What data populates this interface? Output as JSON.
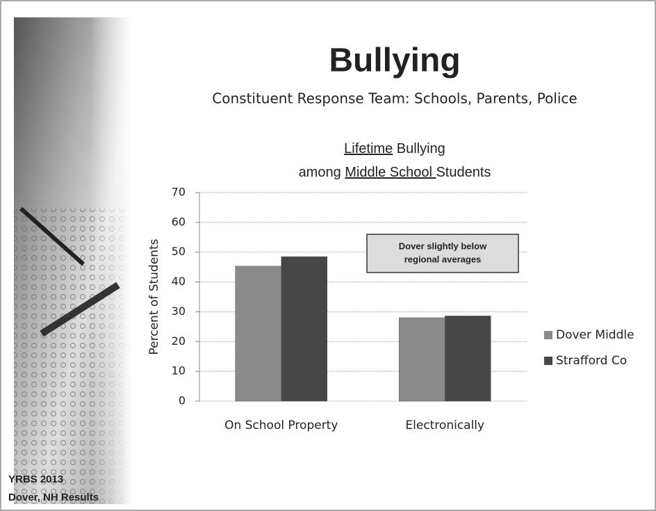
{
  "slide": {
    "heading": "Bullying",
    "subtitle": "Constituent Response Team: Schools, Parents, Police",
    "footer": [
      "YRBS 2013",
      "Dover, NH Results"
    ]
  },
  "chart_data": {
    "type": "bar",
    "title": [
      [
        {
          "text": "Lifetime",
          "underline": true
        },
        {
          "text": " Bullying",
          "underline": false
        }
      ],
      [
        {
          "text": "among ",
          "underline": false
        },
        {
          "text": "Middle School ",
          "underline": true
        },
        {
          "text": "Students",
          "underline": false
        }
      ]
    ],
    "y_label": "Percent of Students",
    "annotation": [
      "Dover slightly below",
      "regional averages"
    ],
    "categories": [
      "On School Property",
      "Electronically"
    ],
    "series": [
      {
        "name": "Dover Middle",
        "color": "#8a8a8a",
        "values": [
          45.3,
          28
        ]
      },
      {
        "name": "Strafford Co",
        "color": "#474747",
        "values": [
          48.5,
          28.6
        ]
      }
    ],
    "ylim": [
      0,
      70
    ],
    "yticks": [
      0,
      10,
      20,
      30,
      40,
      50,
      60,
      70
    ],
    "grid": true,
    "legend": "right"
  }
}
